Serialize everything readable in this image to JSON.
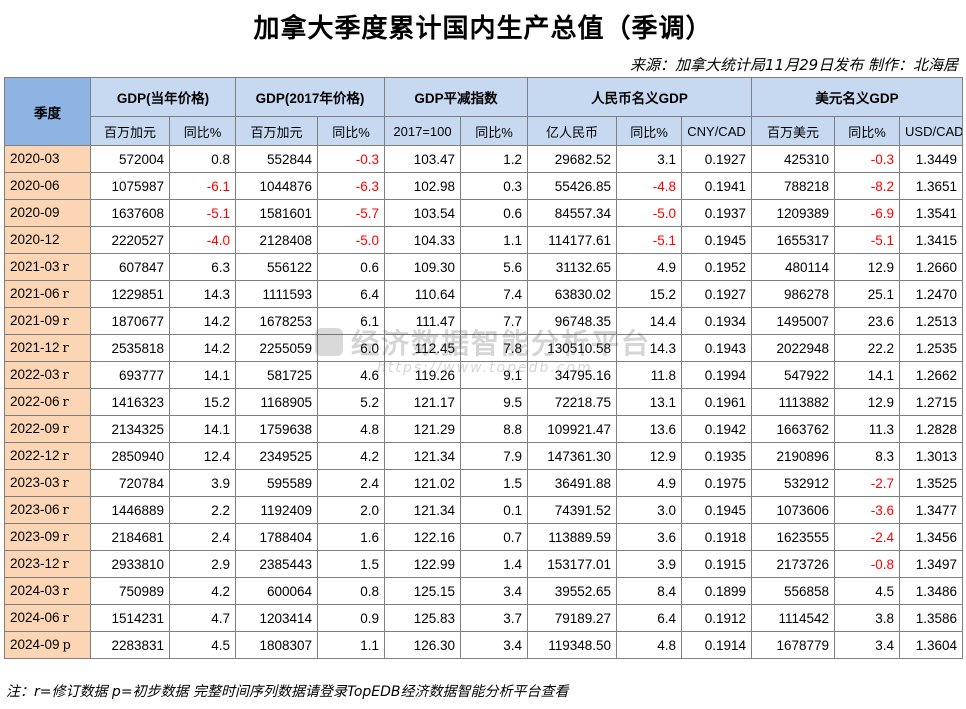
{
  "title": "加拿大季度累计国内生产总值（季调）",
  "source": "来源：加拿大统计局11月29日发布 制作：北海居",
  "header": {
    "quarter": "季度",
    "groups": [
      "GDP(当年价格)",
      "GDP(2017年价格)",
      "GDP平减指数",
      "人民币名义GDP",
      "美元名义GDP"
    ],
    "sub": [
      "百万加元",
      "同比%",
      "百万加元",
      "同比%",
      "2017=100",
      "同比%",
      "亿人民币",
      "同比%",
      "CNY/CAD",
      "百万美元",
      "同比%",
      "USD/CAD"
    ]
  },
  "rows": [
    {
      "q": "2020-03",
      "flag": "",
      "v": [
        "572004",
        "0.8",
        "552844",
        "-0.3",
        "103.47",
        "1.2",
        "29682.52",
        "3.1",
        "0.1927",
        "425310",
        "-0.3",
        "1.3449"
      ]
    },
    {
      "q": "2020-06",
      "flag": "",
      "v": [
        "1075987",
        "-6.1",
        "1044876",
        "-6.3",
        "102.98",
        "0.3",
        "55426.85",
        "-4.8",
        "0.1941",
        "788218",
        "-8.2",
        "1.3651"
      ]
    },
    {
      "q": "2020-09",
      "flag": "",
      "v": [
        "1637608",
        "-5.1",
        "1581601",
        "-5.7",
        "103.54",
        "0.6",
        "84557.34",
        "-5.0",
        "0.1937",
        "1209389",
        "-6.9",
        "1.3541"
      ]
    },
    {
      "q": "2020-12",
      "flag": "",
      "v": [
        "2220527",
        "-4.0",
        "2128408",
        "-5.0",
        "104.33",
        "1.1",
        "114177.61",
        "-5.1",
        "0.1945",
        "1655317",
        "-5.1",
        "1.3415"
      ]
    },
    {
      "q": "2021-03",
      "flag": "r",
      "v": [
        "607847",
        "6.3",
        "556122",
        "0.6",
        "109.30",
        "5.6",
        "31132.65",
        "4.9",
        "0.1952",
        "480114",
        "12.9",
        "1.2660"
      ]
    },
    {
      "q": "2021-06",
      "flag": "r",
      "v": [
        "1229851",
        "14.3",
        "1111593",
        "6.4",
        "110.64",
        "7.4",
        "63830.02",
        "15.2",
        "0.1927",
        "986278",
        "25.1",
        "1.2470"
      ]
    },
    {
      "q": "2021-09",
      "flag": "r",
      "v": [
        "1870677",
        "14.2",
        "1678253",
        "6.1",
        "111.47",
        "7.7",
        "96748.35",
        "14.4",
        "0.1934",
        "1495007",
        "23.6",
        "1.2513"
      ]
    },
    {
      "q": "2021-12",
      "flag": "r",
      "v": [
        "2535818",
        "14.2",
        "2255059",
        "6.0",
        "112.45",
        "7.8",
        "130510.58",
        "14.3",
        "0.1943",
        "2022948",
        "22.2",
        "1.2535"
      ]
    },
    {
      "q": "2022-03",
      "flag": "r",
      "v": [
        "693777",
        "14.1",
        "581725",
        "4.6",
        "119.26",
        "9.1",
        "34795.16",
        "11.8",
        "0.1994",
        "547922",
        "14.1",
        "1.2662"
      ]
    },
    {
      "q": "2022-06",
      "flag": "r",
      "v": [
        "1416323",
        "15.2",
        "1168905",
        "5.2",
        "121.17",
        "9.5",
        "72218.75",
        "13.1",
        "0.1961",
        "1113882",
        "12.9",
        "1.2715"
      ]
    },
    {
      "q": "2022-09",
      "flag": "r",
      "v": [
        "2134325",
        "14.1",
        "1759638",
        "4.8",
        "121.29",
        "8.8",
        "109921.47",
        "13.6",
        "0.1942",
        "1663762",
        "11.3",
        "1.2828"
      ]
    },
    {
      "q": "2022-12",
      "flag": "r",
      "v": [
        "2850940",
        "12.4",
        "2349525",
        "4.2",
        "121.34",
        "7.9",
        "147361.30",
        "12.9",
        "0.1935",
        "2190896",
        "8.3",
        "1.3013"
      ]
    },
    {
      "q": "2023-03",
      "flag": "r",
      "v": [
        "720784",
        "3.9",
        "595589",
        "2.4",
        "121.02",
        "1.5",
        "36491.88",
        "4.9",
        "0.1975",
        "532912",
        "-2.7",
        "1.3525"
      ]
    },
    {
      "q": "2023-06",
      "flag": "r",
      "v": [
        "1446889",
        "2.2",
        "1192409",
        "2.0",
        "121.34",
        "0.1",
        "74391.52",
        "3.0",
        "0.1945",
        "1073606",
        "-3.6",
        "1.3477"
      ]
    },
    {
      "q": "2023-09",
      "flag": "r",
      "v": [
        "2184681",
        "2.4",
        "1788404",
        "1.6",
        "122.16",
        "0.7",
        "113889.59",
        "3.6",
        "0.1918",
        "1623555",
        "-2.4",
        "1.3456"
      ]
    },
    {
      "q": "2023-12",
      "flag": "r",
      "v": [
        "2933810",
        "2.9",
        "2385443",
        "1.5",
        "122.99",
        "1.4",
        "153177.01",
        "3.9",
        "0.1915",
        "2173726",
        "-0.8",
        "1.3497"
      ]
    },
    {
      "q": "2024-03",
      "flag": "r",
      "v": [
        "750989",
        "4.2",
        "600064",
        "0.8",
        "125.15",
        "3.4",
        "39552.65",
        "8.4",
        "0.1899",
        "556858",
        "4.5",
        "1.3486"
      ]
    },
    {
      "q": "2024-06",
      "flag": "r",
      "v": [
        "1514231",
        "4.7",
        "1203414",
        "0.9",
        "125.83",
        "3.7",
        "79189.27",
        "6.4",
        "0.1912",
        "1114542",
        "3.8",
        "1.3586"
      ]
    },
    {
      "q": "2024-09",
      "flag": "p",
      "v": [
        "2283831",
        "4.5",
        "1808307",
        "1.1",
        "126.30",
        "3.4",
        "119348.50",
        "4.8",
        "0.1914",
        "1678779",
        "3.4",
        "1.3604"
      ]
    }
  ],
  "note": "注：r=修订数据 p=初步数据 完整时间序列数据请登录TopEDB经济数据智能分析平台查看",
  "watermark": {
    "text": "经济数据智能分析平台",
    "url": "https://www.topedb.com"
  },
  "colors": {
    "header_bg": "#c6d9f0",
    "quarter_header_bg": "#8db4e2",
    "quarter_cell_bg": "#fcd5b5",
    "negative": "#ff0000"
  }
}
